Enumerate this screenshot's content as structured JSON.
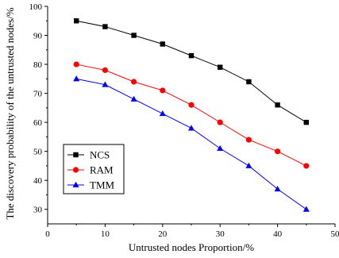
{
  "chart_data": {
    "type": "line",
    "title": "",
    "xlabel": "Untrusted nodes Proportion/%",
    "ylabel": "The discovery probability of the untrusted nodes/%",
    "xlim": [
      0,
      50
    ],
    "ylim": [
      25,
      100
    ],
    "xticks": [
      0,
      10,
      20,
      30,
      40,
      50
    ],
    "yticks": [
      30,
      40,
      50,
      60,
      70,
      80,
      90,
      100
    ],
    "grid": false,
    "legend_position": "bottom-left",
    "x": [
      5,
      10,
      15,
      20,
      25,
      30,
      35,
      40,
      45
    ],
    "series": [
      {
        "name": "NCS",
        "color": "#000000",
        "marker": "square",
        "values": [
          95,
          93,
          90,
          87,
          83,
          79,
          74,
          66,
          60
        ]
      },
      {
        "name": "RAM",
        "color": "#ff0000",
        "marker": "circle",
        "values": [
          80,
          78,
          74,
          71,
          66,
          60,
          54,
          50,
          45
        ]
      },
      {
        "name": "TMM",
        "color": "#0000ff",
        "marker": "triangle",
        "values": [
          75,
          73,
          68,
          63,
          58,
          51,
          45,
          37,
          30
        ]
      }
    ]
  }
}
